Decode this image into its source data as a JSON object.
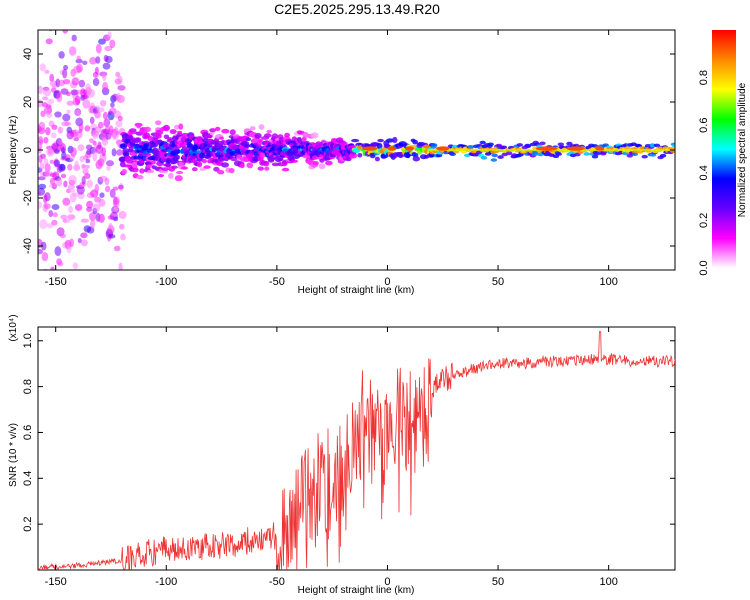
{
  "chart_data": [
    {
      "type": "heatmap",
      "title": "C2E5.2025.295.13.49.R20",
      "xlabel": "Height of straight line (km)",
      "ylabel": "Frequency (Hz)",
      "xlim": [
        -158,
        130
      ],
      "ylim": [
        -50,
        50
      ],
      "xticks": [
        -150,
        -100,
        -50,
        0,
        50,
        100
      ],
      "yticks": [
        -40,
        -20,
        0,
        20,
        40
      ],
      "colorbar": {
        "label": "Normalized spectral amplitude",
        "range": [
          0,
          1
        ],
        "ticks": [
          0.0,
          0.2,
          0.4,
          0.6,
          0.8
        ],
        "colormap": [
          "#ffffff",
          "#ff00ff",
          "#6600ff",
          "#0000ff",
          "#00ffff",
          "#00ff00",
          "#ffff00",
          "#ff8800",
          "#ff0000"
        ]
      },
      "regions": [
        {
          "x": [
            -158,
            -120
          ],
          "freq_spread_hz": 50,
          "amplitude": 0.15,
          "note": "sparse scattered energy"
        },
        {
          "x": [
            -120,
            -15
          ],
          "freq_spread_hz": 10,
          "amplitude": 0.25,
          "note": "blue/cyan band narrowing"
        },
        {
          "x": [
            -15,
            20
          ],
          "freq_spread_hz": 4,
          "amplitude": 0.6,
          "note": "green/yellow band"
        },
        {
          "x": [
            20,
            130
          ],
          "freq_spread_hz": 3,
          "amplitude": 0.9,
          "note": "narrow red line near 0 Hz"
        }
      ]
    },
    {
      "type": "line",
      "xlabel": "Height of straight line (km)",
      "ylabel": "SNR (10 * v/v)",
      "y_multiplier": "(x10⁴)",
      "xlim": [
        -158,
        130
      ],
      "ylim": [
        0.0,
        1.06
      ],
      "xticks": [
        -150,
        -100,
        -50,
        0,
        50,
        100
      ],
      "yticks": [
        0.2,
        0.4,
        0.6,
        0.8,
        1.0
      ],
      "color": "#ee3333",
      "series": [
        {
          "name": "SNR",
          "x": [
            -158,
            -140,
            -120,
            -110,
            -100,
            -90,
            -80,
            -70,
            -60,
            -50,
            -45,
            -40,
            -35,
            -30,
            -25,
            -20,
            -15,
            -10,
            -5,
            0,
            5,
            10,
            15,
            20,
            25,
            30,
            40,
            50,
            60,
            70,
            80,
            90,
            100,
            110,
            120,
            130
          ],
          "y": [
            0.01,
            0.02,
            0.04,
            0.07,
            0.09,
            0.1,
            0.1,
            0.11,
            0.11,
            0.12,
            0.2,
            0.28,
            0.32,
            0.34,
            0.38,
            0.45,
            0.55,
            0.6,
            0.65,
            0.65,
            0.7,
            0.6,
            0.66,
            0.78,
            0.83,
            0.85,
            0.88,
            0.9,
            0.9,
            0.91,
            0.91,
            0.92,
            0.92,
            0.91,
            0.91,
            0.91
          ]
        }
      ]
    }
  ]
}
